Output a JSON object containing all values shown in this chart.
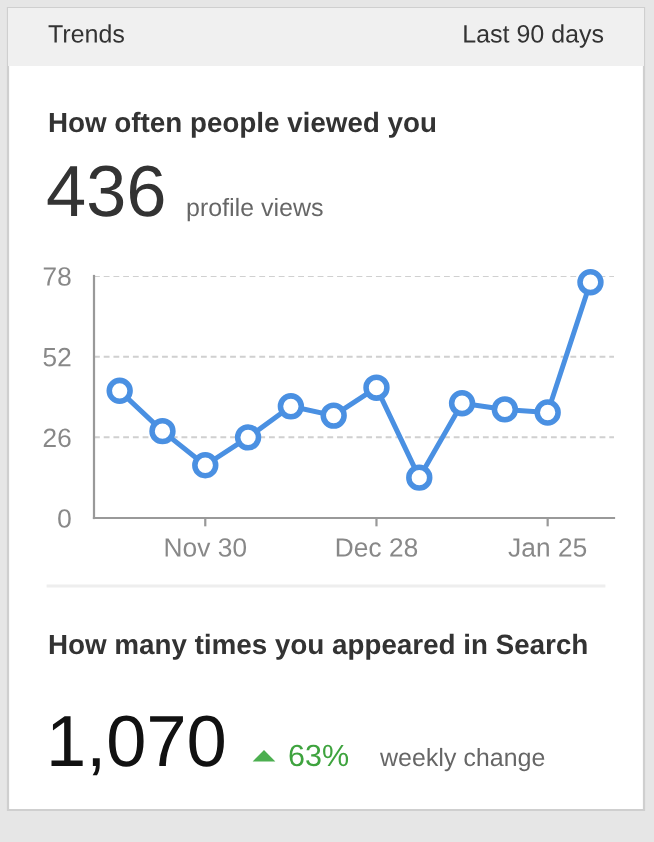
{
  "chart_data": {
    "type": "line",
    "title": "How often people viewed you",
    "categories": [
      null,
      null,
      "Nov 30",
      null,
      null,
      null,
      "Dec 28",
      null,
      null,
      null,
      "Jan 25",
      null
    ],
    "series": [
      {
        "color": "#4a90e2",
        "values": [
          41,
          28,
          17,
          26,
          36,
          33,
          42,
          13,
          37,
          35,
          34,
          76
        ]
      }
    ],
    "ylim": [
      0,
      78
    ],
    "yticks": [
      0,
      26,
      52,
      78
    ],
    "grid": "y",
    "legend": false,
    "marker": "circle",
    "line_style": "solid",
    "annotations": [
      "Trends",
      "Last 90 days",
      "436",
      "profile views",
      "How many times you appeared in Search",
      "1,070",
      "63%",
      "weekly change"
    ]
  }
}
